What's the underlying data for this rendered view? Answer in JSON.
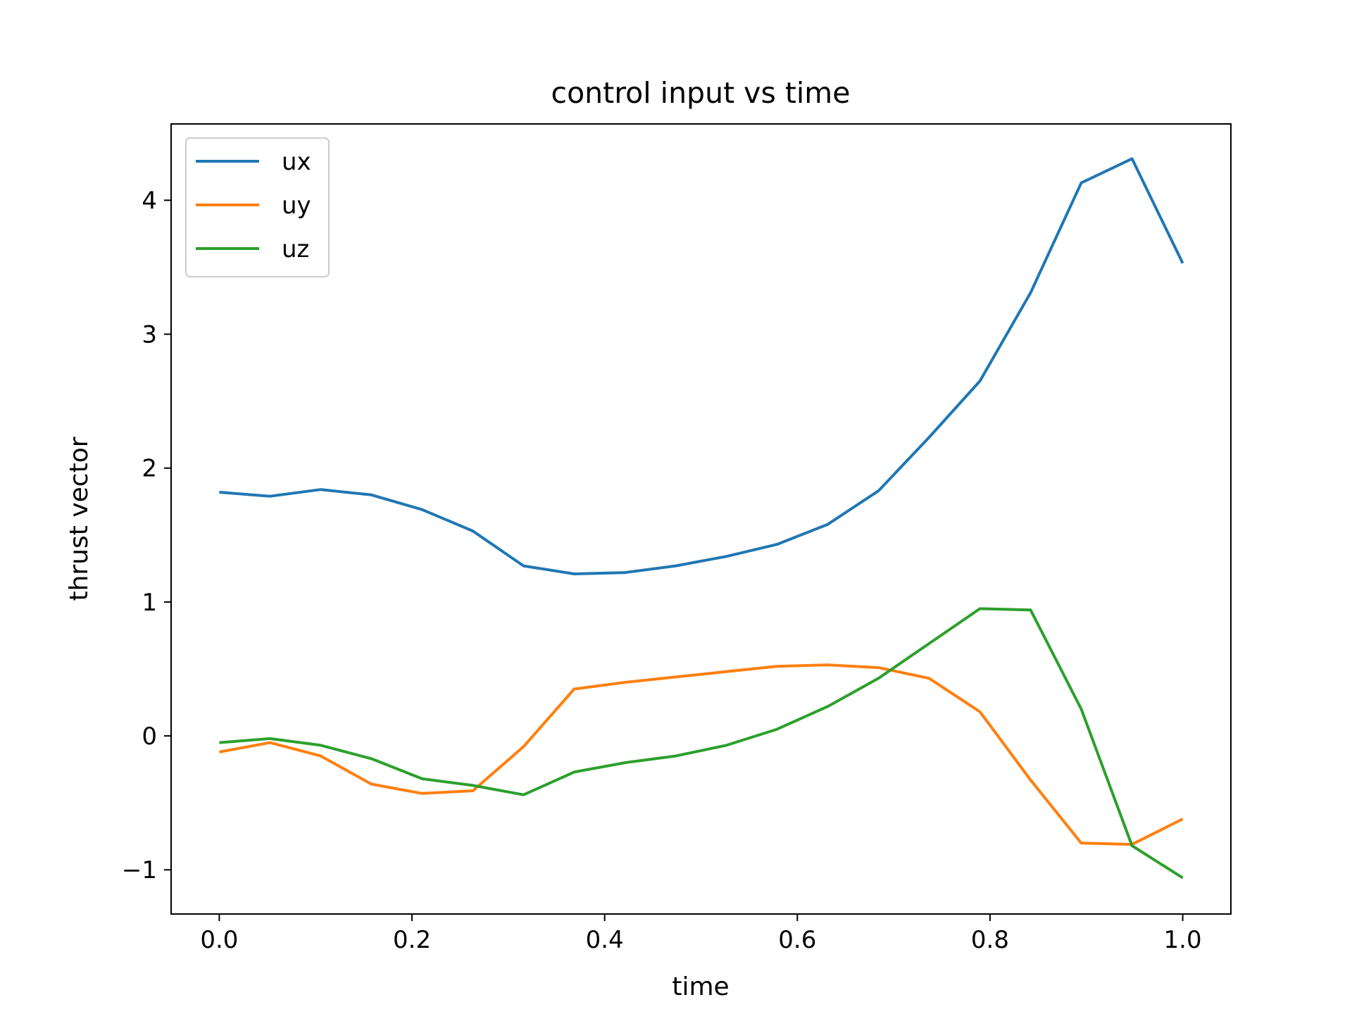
{
  "chart_data": {
    "type": "line",
    "title": "control input vs time",
    "xlabel": "time",
    "ylabel": "thrust vector",
    "xlim": [
      -0.05,
      1.05
    ],
    "ylim": [
      -1.33,
      4.57
    ],
    "xticks": [
      0.0,
      0.2,
      0.4,
      0.6,
      0.8,
      1.0
    ],
    "xtick_labels": [
      "0.0",
      "0.2",
      "0.4",
      "0.6",
      "0.8",
      "1.0"
    ],
    "yticks": [
      -1,
      0,
      1,
      2,
      3,
      4
    ],
    "ytick_labels": [
      "−1",
      "0",
      "1",
      "2",
      "3",
      "4"
    ],
    "grid": false,
    "legend_position": "top-left",
    "x": [
      0.0,
      0.0526,
      0.1053,
      0.1579,
      0.2105,
      0.2632,
      0.3158,
      0.3684,
      0.4211,
      0.4737,
      0.5263,
      0.5789,
      0.6316,
      0.6842,
      0.7368,
      0.7895,
      0.8421,
      0.8947,
      0.9474,
      1.0
    ],
    "series": [
      {
        "name": "ux",
        "color": "#1f77b4",
        "values": [
          1.82,
          1.79,
          1.84,
          1.8,
          1.69,
          1.53,
          1.27,
          1.21,
          1.22,
          1.27,
          1.34,
          1.43,
          1.58,
          1.83,
          2.23,
          2.65,
          3.31,
          4.13,
          4.31,
          3.53
        ]
      },
      {
        "name": "uy",
        "color": "#ff7f0e",
        "values": [
          -0.12,
          -0.05,
          -0.15,
          -0.36,
          -0.43,
          -0.41,
          -0.08,
          0.35,
          0.4,
          0.44,
          0.48,
          0.52,
          0.53,
          0.51,
          0.43,
          0.18,
          -0.33,
          -0.8,
          -0.81,
          -0.62
        ]
      },
      {
        "name": "uz",
        "color": "#2ca02c",
        "values": [
          -0.05,
          -0.02,
          -0.07,
          -0.17,
          -0.32,
          -0.37,
          -0.44,
          -0.27,
          -0.2,
          -0.15,
          -0.07,
          0.05,
          0.22,
          0.43,
          0.69,
          0.95,
          0.94,
          0.2,
          -0.82,
          -1.06
        ]
      }
    ]
  }
}
